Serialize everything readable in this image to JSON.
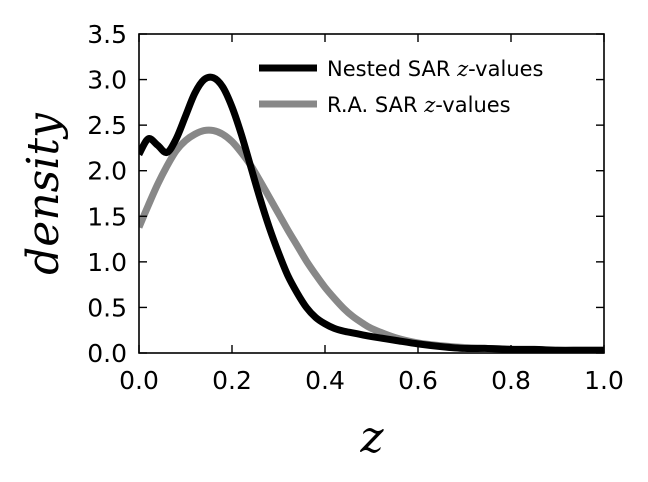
{
  "chart_data": {
    "type": "line",
    "title": "",
    "xlabel": "z",
    "ylabel": "density",
    "xlim": [
      0.0,
      1.0
    ],
    "ylim": [
      0.0,
      3.5
    ],
    "xticks": [
      0.0,
      0.2,
      0.4,
      0.6,
      0.8,
      1.0
    ],
    "yticks": [
      0.0,
      0.5,
      1.0,
      1.5,
      2.0,
      2.5,
      3.0,
      3.5
    ],
    "xtick_labels": [
      "0.0",
      "0.2",
      "0.4",
      "0.6",
      "0.8",
      "1.0"
    ],
    "ytick_labels": [
      "0.0",
      "0.5",
      "1.0",
      "1.5",
      "2.0",
      "2.5",
      "3.0",
      "3.5"
    ],
    "grid": false,
    "legend_position": "top-right",
    "series": [
      {
        "name": "Nested SAR z-values",
        "legend_prefix": "Nested SAR ",
        "legend_math": "z",
        "legend_suffix": "-values",
        "color": "#000000",
        "x": [
          0.0,
          0.02,
          0.04,
          0.06,
          0.08,
          0.1,
          0.12,
          0.14,
          0.16,
          0.18,
          0.2,
          0.22,
          0.24,
          0.26,
          0.28,
          0.3,
          0.32,
          0.34,
          0.36,
          0.38,
          0.4,
          0.42,
          0.44,
          0.46,
          0.48,
          0.5,
          0.55,
          0.6,
          0.65,
          0.7,
          0.75,
          0.8,
          0.85,
          0.9,
          0.95,
          1.0
        ],
        "y": [
          2.18,
          2.35,
          2.28,
          2.2,
          2.35,
          2.6,
          2.85,
          3.0,
          3.02,
          2.92,
          2.7,
          2.4,
          2.05,
          1.7,
          1.38,
          1.1,
          0.85,
          0.66,
          0.5,
          0.39,
          0.32,
          0.27,
          0.24,
          0.22,
          0.2,
          0.18,
          0.14,
          0.1,
          0.07,
          0.05,
          0.05,
          0.04,
          0.04,
          0.03,
          0.03,
          0.03
        ]
      },
      {
        "name": "R.A. SAR z-values",
        "legend_prefix": "R.A. SAR ",
        "legend_math": "z",
        "legend_suffix": "-values",
        "color": "#888888",
        "x": [
          0.0,
          0.02,
          0.04,
          0.06,
          0.08,
          0.1,
          0.12,
          0.14,
          0.16,
          0.18,
          0.2,
          0.22,
          0.24,
          0.26,
          0.28,
          0.3,
          0.32,
          0.34,
          0.36,
          0.38,
          0.4,
          0.42,
          0.44,
          0.46,
          0.48,
          0.5,
          0.55,
          0.6,
          0.65,
          0.7,
          0.75,
          0.8,
          0.85,
          0.9,
          0.95,
          1.0
        ],
        "y": [
          1.38,
          1.62,
          1.85,
          2.05,
          2.22,
          2.33,
          2.4,
          2.44,
          2.44,
          2.4,
          2.32,
          2.2,
          2.06,
          1.89,
          1.71,
          1.53,
          1.35,
          1.18,
          1.01,
          0.86,
          0.72,
          0.6,
          0.49,
          0.4,
          0.33,
          0.27,
          0.17,
          0.11,
          0.08,
          0.06,
          0.05,
          0.04,
          0.03,
          0.03,
          0.03,
          0.03
        ]
      }
    ]
  }
}
